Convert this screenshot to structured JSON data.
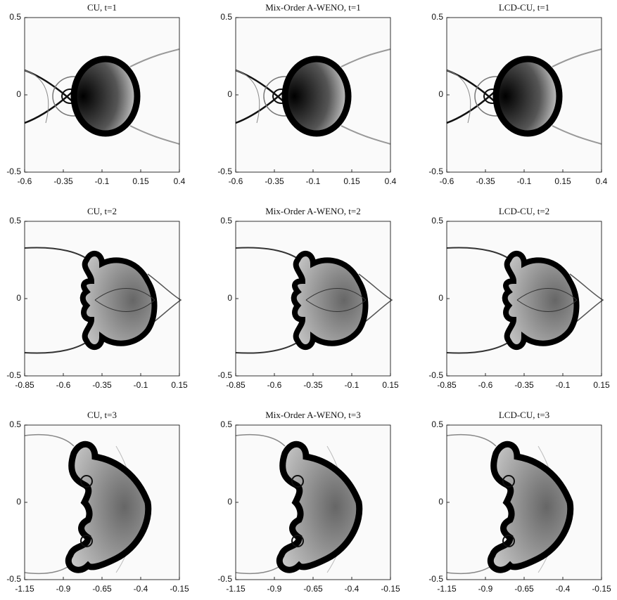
{
  "chart_data": [
    {
      "type": "image",
      "title": "CU, t=1",
      "xlim": [
        -0.6,
        0.4
      ],
      "xticks": [
        -0.6,
        -0.35,
        -0.1,
        0.15,
        0.4
      ],
      "ylim": [
        -0.5,
        0.5
      ],
      "yticks": [
        -0.5,
        0,
        0.5
      ]
    },
    {
      "type": "image",
      "title": "Mix-Order A-WENO, t=1",
      "xlim": [
        -0.6,
        0.4
      ],
      "xticks": [
        -0.6,
        -0.35,
        -0.1,
        0.15,
        0.4
      ],
      "ylim": [
        -0.5,
        0.5
      ],
      "yticks": [
        -0.5,
        0,
        0.5
      ]
    },
    {
      "type": "image",
      "title": "LCD-CU, t=1",
      "xlim": [
        -0.6,
        0.4
      ],
      "xticks": [
        -0.6,
        -0.35,
        -0.1,
        0.15,
        0.4
      ],
      "ylim": [
        -0.5,
        0.5
      ],
      "yticks": [
        -0.5,
        0,
        0.5
      ]
    },
    {
      "type": "image",
      "title": "CU, t=2",
      "xlim": [
        -0.85,
        0.15
      ],
      "xticks": [
        -0.85,
        -0.6,
        -0.35,
        -0.1,
        0.15
      ],
      "ylim": [
        -0.5,
        0.5
      ],
      "yticks": [
        -0.5,
        0,
        0.5
      ]
    },
    {
      "type": "image",
      "title": "Mix-Order A-WENO, t=2",
      "xlim": [
        -0.85,
        0.15
      ],
      "xticks": [
        -0.85,
        -0.6,
        -0.35,
        -0.1,
        0.15
      ],
      "ylim": [
        -0.5,
        0.5
      ],
      "yticks": [
        -0.5,
        0,
        0.5
      ]
    },
    {
      "type": "image",
      "title": "LCD-CU, t=2",
      "xlim": [
        -0.85,
        0.15
      ],
      "xticks": [
        -0.85,
        -0.6,
        -0.35,
        -0.1,
        0.15
      ],
      "ylim": [
        -0.5,
        0.5
      ],
      "yticks": [
        -0.5,
        0,
        0.5
      ]
    },
    {
      "type": "image",
      "title": "CU, t=3",
      "xlim": [
        -1.15,
        -0.15
      ],
      "xticks": [
        -1.15,
        -0.9,
        -0.65,
        -0.4,
        -0.15
      ],
      "ylim": [
        -0.5,
        0.5
      ],
      "yticks": [
        -0.5,
        0,
        0.5
      ]
    },
    {
      "type": "image",
      "title": "Mix-Order A-WENO, t=3",
      "xlim": [
        -1.15,
        -0.15
      ],
      "xticks": [
        -1.15,
        -0.9,
        -0.65,
        -0.4,
        -0.15
      ],
      "ylim": [
        -0.5,
        0.5
      ],
      "yticks": [
        -0.5,
        0,
        0.5
      ]
    },
    {
      "type": "image",
      "title": "LCD-CU, t=3",
      "xlim": [
        -1.15,
        -0.15
      ],
      "xticks": [
        -1.15,
        -0.9,
        -0.65,
        -0.4,
        -0.15
      ],
      "ylim": [
        -0.5,
        0.5
      ],
      "yticks": [
        -0.5,
        0,
        0.5
      ]
    }
  ]
}
